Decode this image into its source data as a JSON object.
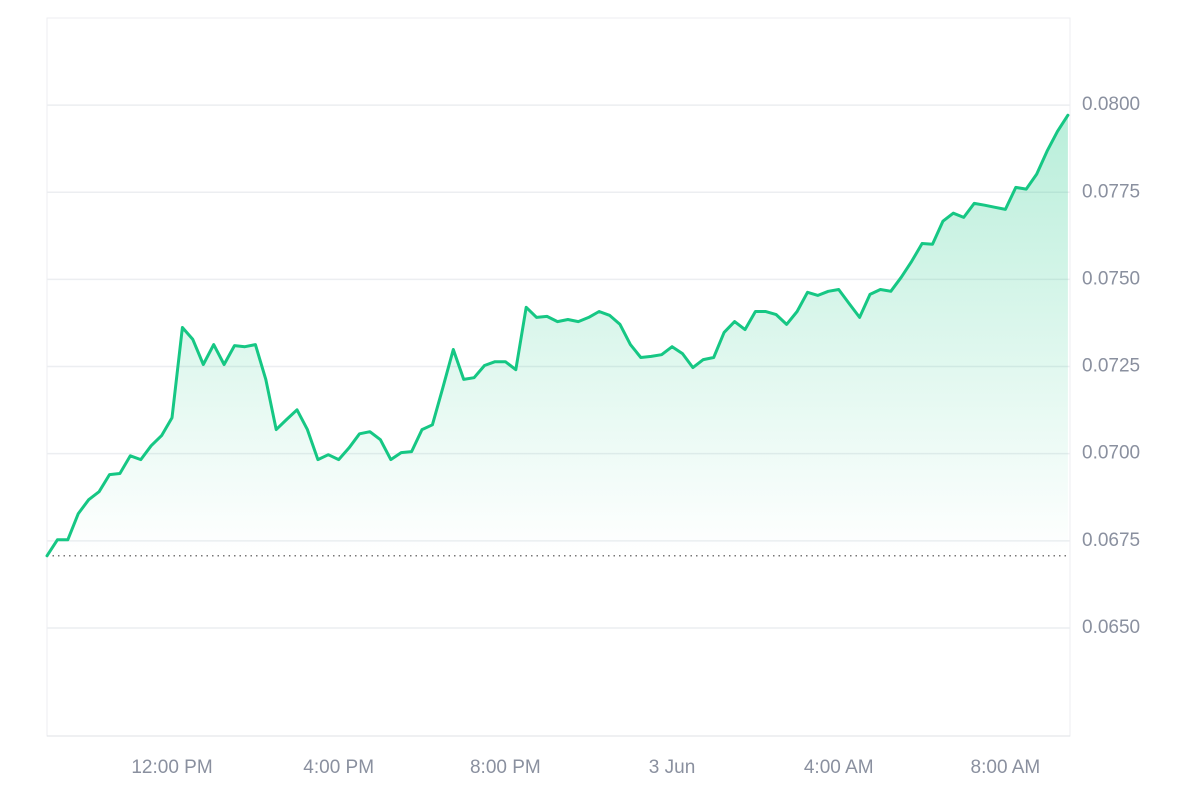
{
  "chart_data": {
    "type": "area",
    "color": "#16c784",
    "x": [
      9,
      9.25,
      9.5,
      9.75,
      10,
      10.25,
      10.5,
      10.75,
      11,
      11.25,
      11.5,
      11.75,
      12,
      12.25,
      12.5,
      12.75,
      13,
      13.25,
      13.5,
      13.75,
      14,
      14.25,
      14.5,
      14.75,
      15,
      15.25,
      15.5,
      15.75,
      16,
      16.25,
      16.5,
      16.75,
      17,
      17.25,
      17.5,
      17.75,
      18,
      18.25,
      18.5,
      18.75,
      19,
      19.25,
      19.5,
      19.75,
      20,
      20.25,
      20.5,
      20.75,
      21,
      21.25,
      21.5,
      21.75,
      22,
      22.25,
      22.5,
      22.75,
      23,
      23.25,
      23.5,
      23.75,
      24,
      24.25,
      24.5,
      24.75,
      25,
      25.25,
      25.5,
      25.75,
      26,
      26.25,
      26.5,
      26.75,
      27,
      27.25,
      27.5,
      27.75,
      28,
      28.25,
      28.5,
      28.75,
      29,
      29.25,
      29.5,
      29.75,
      30,
      30.25,
      30.5,
      30.75,
      31,
      31.25,
      31.5,
      31.75,
      32,
      32.25,
      32.5,
      32.75,
      33,
      33.25,
      33.5
    ],
    "values": [
      0.06707,
      0.06753,
      0.06753,
      0.06828,
      0.06868,
      0.06891,
      0.0694,
      0.06943,
      0.06994,
      0.06983,
      0.07023,
      0.07052,
      0.07103,
      0.07362,
      0.07328,
      0.07256,
      0.07313,
      0.07256,
      0.0731,
      0.07307,
      0.07313,
      0.07213,
      0.07069,
      0.07098,
      0.07126,
      0.07069,
      0.06983,
      0.06997,
      0.06983,
      0.07017,
      0.07057,
      0.07063,
      0.0704,
      0.06983,
      0.07003,
      0.07006,
      0.07069,
      0.07083,
      0.0719,
      0.07299,
      0.07213,
      0.07218,
      0.07253,
      0.07264,
      0.07264,
      0.07241,
      0.0742,
      0.07391,
      0.07394,
      0.07379,
      0.07385,
      0.07379,
      0.07391,
      0.07408,
      0.07397,
      0.07371,
      0.07313,
      0.07276,
      0.07279,
      0.07284,
      0.07307,
      0.07287,
      0.07247,
      0.0727,
      0.07276,
      0.07348,
      0.07379,
      0.07356,
      0.07408,
      0.07408,
      0.07399,
      0.07371,
      0.07408,
      0.07463,
      0.07454,
      0.07466,
      0.07471,
      0.07431,
      0.07391,
      0.07457,
      0.07471,
      0.07466,
      0.07506,
      0.07552,
      0.07603,
      0.07601,
      0.07667,
      0.0769,
      0.07678,
      0.07718,
      0.07713,
      0.07707,
      0.07701,
      0.07764,
      0.07759,
      0.07802,
      0.07868,
      0.07925,
      0.07971
    ],
    "baseline": 0.06707,
    "xlim": [
      9,
      33.55
    ],
    "xticks": [
      {
        "value": 12,
        "label": "12:00 PM"
      },
      {
        "value": 16,
        "label": "4:00 PM"
      },
      {
        "value": 20,
        "label": "8:00 PM"
      },
      {
        "value": 24,
        "label": "3 Jun"
      },
      {
        "value": 28,
        "label": "4:00 AM"
      },
      {
        "value": 32,
        "label": "8:00 AM"
      }
    ],
    "ylim": [
      0.0619,
      0.0825
    ],
    "yticks": [
      {
        "value": 0.065,
        "label": "0.0650"
      },
      {
        "value": 0.0675,
        "label": "0.0675"
      },
      {
        "value": 0.07,
        "label": "0.0700"
      },
      {
        "value": 0.0725,
        "label": "0.0725"
      },
      {
        "value": 0.075,
        "label": "0.0750"
      },
      {
        "value": 0.0775,
        "label": "0.0775"
      },
      {
        "value": 0.08,
        "label": "0.0800"
      }
    ],
    "grid": true
  }
}
